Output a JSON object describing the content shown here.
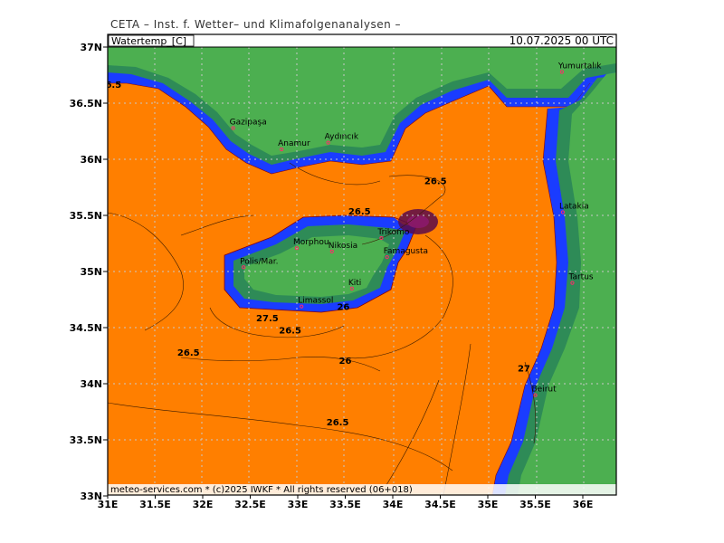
{
  "header": {
    "title": "CETA – Inst. f. Wetter– und Klimafolgenanalysen –",
    "parameter": "Watertemp_[C]",
    "valid_time": "10.07.2025 00 UTC"
  },
  "footer": {
    "copyright": "meteo-services.com * (c)2025 IWKF * All rights reserved (06+018)"
  },
  "colors": {
    "sea_warm": "#ff7f00",
    "land": "#4caf50",
    "land_dark": "#2e8b57",
    "coast_blue": "#1a3cff",
    "coast_navy": "#1a1aa0",
    "contour_red": "#8b0000",
    "grid": "#c8c8c8"
  },
  "axes": {
    "lat_labels": [
      "37N",
      "36.5N",
      "36N",
      "35.5N",
      "35N",
      "34.5N",
      "34N",
      "33.5N",
      "33N"
    ],
    "lon_labels": [
      "31E",
      "31.5E",
      "32E",
      "32.5E",
      "33E",
      "33.5E",
      "34E",
      "34.5E",
      "35E",
      "35.5E",
      "36E"
    ]
  },
  "places": [
    {
      "name": "Yumurtalık",
      "lon": 35.78,
      "lat": 36.77
    },
    {
      "name": "Gazipaşa",
      "lon": 32.32,
      "lat": 36.27
    },
    {
      "name": "Anamur",
      "lon": 32.83,
      "lat": 36.08
    },
    {
      "name": "Aydıncık",
      "lon": 33.32,
      "lat": 36.14
    },
    {
      "name": "Latakia",
      "lon": 35.79,
      "lat": 35.52
    },
    {
      "name": "Trikomo",
      "lon": 33.88,
      "lat": 35.29
    },
    {
      "name": "Morphou",
      "lon": 32.99,
      "lat": 35.2
    },
    {
      "name": "Nikosia",
      "lon": 33.36,
      "lat": 35.17
    },
    {
      "name": "Famagusta",
      "lon": 33.94,
      "lat": 35.12
    },
    {
      "name": "Polis/Mar.",
      "lon": 32.43,
      "lat": 35.03
    },
    {
      "name": "Tartus",
      "lon": 35.89,
      "lat": 34.89
    },
    {
      "name": "Kiti",
      "lon": 33.57,
      "lat": 34.84
    },
    {
      "name": "Limassol",
      "lon": 33.04,
      "lat": 34.68
    },
    {
      "name": "Beirut",
      "lon": 35.5,
      "lat": 33.89
    }
  ],
  "contour_labels": [
    {
      "text": "26.5",
      "lon": 34.45,
      "lat": 35.77
    },
    {
      "text": "26.5",
      "lon": 33.65,
      "lat": 35.5
    },
    {
      "text": "26",
      "lon": 33.48,
      "lat": 34.65
    },
    {
      "text": "27.5",
      "lon": 32.68,
      "lat": 34.55
    },
    {
      "text": "26.5",
      "lon": 32.92,
      "lat": 34.44
    },
    {
      "text": "26.5",
      "lon": 31.85,
      "lat": 34.24
    },
    {
      "text": "26",
      "lon": 33.5,
      "lat": 34.17
    },
    {
      "text": "27",
      "lon": 35.38,
      "lat": 34.1
    },
    {
      "text": "26.5",
      "lon": 33.42,
      "lat": 33.62
    },
    {
      "text": "6.5",
      "lon": 31.06,
      "lat": 36.63
    }
  ]
}
